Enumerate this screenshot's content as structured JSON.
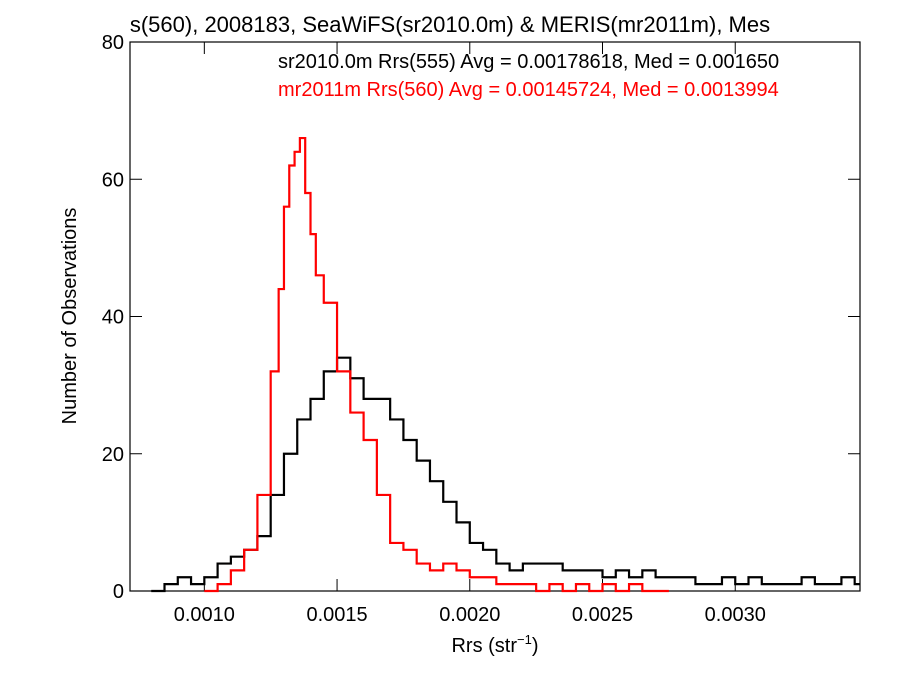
{
  "chart_data": {
    "type": "line",
    "title": "s(560), 2008183, SeaWiFS(sr2010.0m) & MERIS(mr2011m), Mes",
    "xlabel": "Rrs (str",
    "xlabel_sup": "−1",
    "xlabel_close": ")",
    "ylabel": "Number of Observations",
    "xlim": [
      0.00072,
      0.00347
    ],
    "ylim": [
      0,
      80
    ],
    "x_ticks": [
      0.001,
      0.0015,
      0.002,
      0.0025,
      0.003
    ],
    "x_tick_labels": [
      "0.0010",
      "0.0015",
      "0.0020",
      "0.0025",
      "0.0030"
    ],
    "y_ticks": [
      0,
      20,
      40,
      60,
      80
    ],
    "y_tick_labels": [
      "0",
      "20",
      "40",
      "60",
      "80"
    ],
    "grid": false,
    "legend_position": "top-right",
    "annotations": [
      {
        "text": "sr2010.0m Rrs(555) Avg = 0.00178618, Med = 0.001650",
        "color": "#000000"
      },
      {
        "text": "mr2011m Rrs(560) Avg = 0.00145724, Med = 0.0013994",
        "color": "#ff0000"
      }
    ],
    "series": [
      {
        "color": "#000000",
        "values": [
          [
            0.0008,
            0
          ],
          [
            0.00085,
            1
          ],
          [
            0.0009,
            2
          ],
          [
            0.00095,
            1
          ],
          [
            0.001,
            2
          ],
          [
            0.00105,
            4
          ],
          [
            0.0011,
            5
          ],
          [
            0.00115,
            6
          ],
          [
            0.0012,
            8
          ],
          [
            0.00125,
            14
          ],
          [
            0.0013,
            20
          ],
          [
            0.00135,
            25
          ],
          [
            0.0014,
            28
          ],
          [
            0.00145,
            32
          ],
          [
            0.0015,
            34
          ],
          [
            0.00155,
            31
          ],
          [
            0.0016,
            28
          ],
          [
            0.00165,
            28
          ],
          [
            0.0017,
            25
          ],
          [
            0.00175,
            22
          ],
          [
            0.0018,
            19
          ],
          [
            0.00185,
            16
          ],
          [
            0.0019,
            13
          ],
          [
            0.00195,
            10
          ],
          [
            0.002,
            7
          ],
          [
            0.00205,
            6
          ],
          [
            0.0021,
            4
          ],
          [
            0.00215,
            3
          ],
          [
            0.0022,
            4
          ],
          [
            0.00225,
            4
          ],
          [
            0.0023,
            4
          ],
          [
            0.00235,
            3
          ],
          [
            0.0024,
            3
          ],
          [
            0.00245,
            3
          ],
          [
            0.0025,
            2
          ],
          [
            0.00255,
            3
          ],
          [
            0.0026,
            2
          ],
          [
            0.00265,
            3
          ],
          [
            0.0027,
            2
          ],
          [
            0.00275,
            2
          ],
          [
            0.0028,
            2
          ],
          [
            0.00285,
            1
          ],
          [
            0.0029,
            1
          ],
          [
            0.00295,
            2
          ],
          [
            0.003,
            1
          ],
          [
            0.00305,
            2
          ],
          [
            0.0031,
            1
          ],
          [
            0.00315,
            1
          ],
          [
            0.0032,
            1
          ],
          [
            0.00325,
            2
          ],
          [
            0.0033,
            1
          ],
          [
            0.00335,
            1
          ],
          [
            0.0034,
            2
          ],
          [
            0.00345,
            1
          ]
        ]
      },
      {
        "color": "#ff0000",
        "values": [
          [
            0.001,
            0
          ],
          [
            0.00105,
            1
          ],
          [
            0.0011,
            3
          ],
          [
            0.00115,
            6
          ],
          [
            0.0012,
            14
          ],
          [
            0.00125,
            32
          ],
          [
            0.00128,
            44
          ],
          [
            0.0013,
            56
          ],
          [
            0.00132,
            62
          ],
          [
            0.00134,
            64
          ],
          [
            0.00136,
            66
          ],
          [
            0.00138,
            58
          ],
          [
            0.0014,
            52
          ],
          [
            0.00142,
            46
          ],
          [
            0.00145,
            42
          ],
          [
            0.0015,
            32
          ],
          [
            0.00155,
            26
          ],
          [
            0.0016,
            22
          ],
          [
            0.00165,
            14
          ],
          [
            0.0017,
            7
          ],
          [
            0.00175,
            6
          ],
          [
            0.0018,
            4
          ],
          [
            0.00185,
            3
          ],
          [
            0.0019,
            4
          ],
          [
            0.00195,
            3
          ],
          [
            0.002,
            2
          ],
          [
            0.00205,
            2
          ],
          [
            0.0021,
            1
          ],
          [
            0.00215,
            1
          ],
          [
            0.0022,
            1
          ],
          [
            0.00225,
            0
          ],
          [
            0.0023,
            1
          ],
          [
            0.00235,
            0
          ],
          [
            0.0024,
            1
          ],
          [
            0.00245,
            0
          ],
          [
            0.0025,
            1
          ],
          [
            0.00255,
            0
          ],
          [
            0.0026,
            1
          ],
          [
            0.00265,
            0
          ],
          [
            0.0027,
            0
          ]
        ]
      }
    ]
  }
}
